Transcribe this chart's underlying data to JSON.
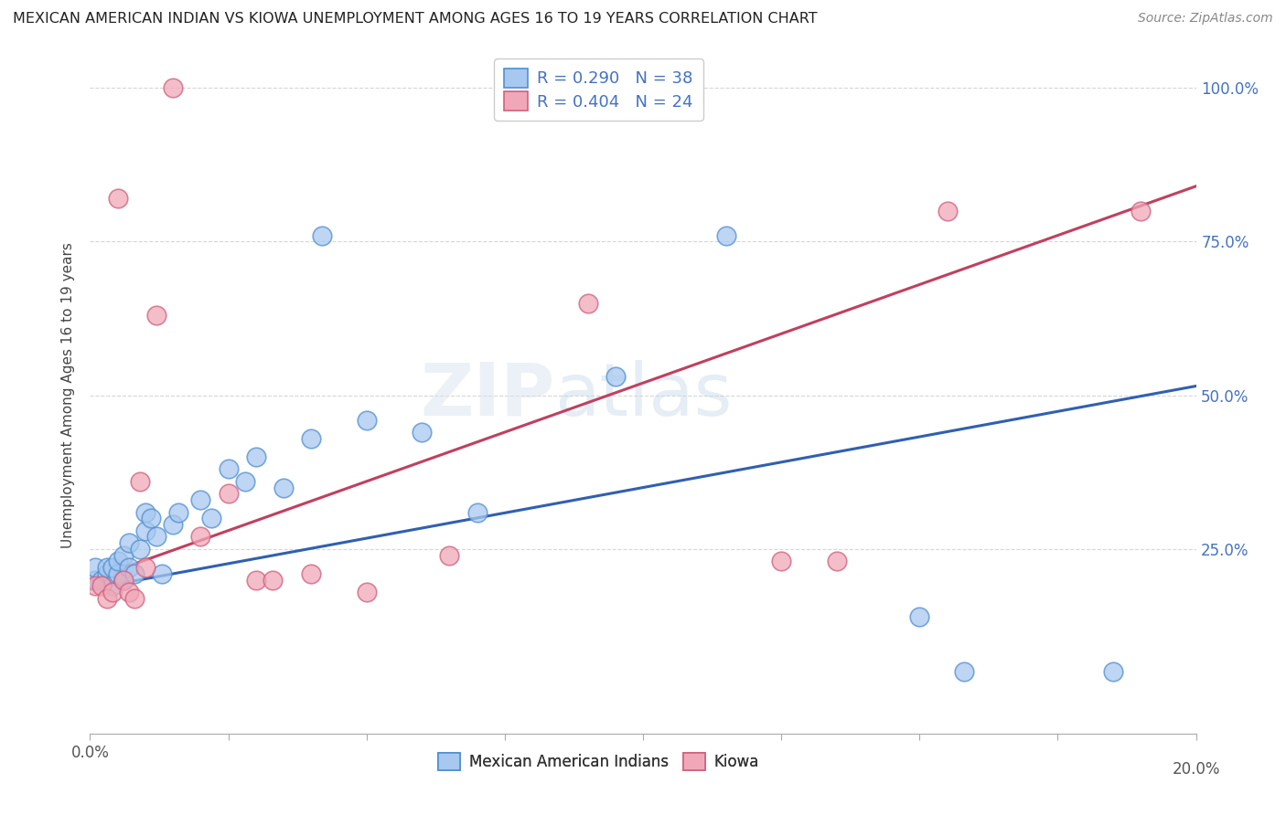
{
  "title": "MEXICAN AMERICAN INDIAN VS KIOWA UNEMPLOYMENT AMONG AGES 16 TO 19 YEARS CORRELATION CHART",
  "source": "Source: ZipAtlas.com",
  "ylabel": "Unemployment Among Ages 16 to 19 years",
  "ytick_labels": [
    "25.0%",
    "50.0%",
    "75.0%",
    "100.0%"
  ],
  "ytick_values": [
    0.25,
    0.5,
    0.75,
    1.0
  ],
  "xtick_values": [
    0,
    0.025,
    0.05,
    0.075,
    0.1,
    0.125,
    0.15,
    0.175,
    0.2
  ],
  "xlim": [
    0,
    0.2
  ],
  "ylim": [
    -0.05,
    1.05
  ],
  "blue_R": 0.29,
  "blue_N": 38,
  "pink_R": 0.404,
  "pink_N": 24,
  "blue_color": "#A8C8F0",
  "pink_color": "#F0A8B8",
  "blue_edge_color": "#5090D0",
  "pink_edge_color": "#D06080",
  "blue_line_color": "#3060B0",
  "pink_line_color": "#C04060",
  "legend_label_blue": "Mexican American Indians",
  "legend_label_pink": "Kiowa",
  "watermark_zip": "ZIP",
  "watermark_atlas": "atlas",
  "blue_scatter_x": [
    0.001,
    0.001,
    0.002,
    0.003,
    0.003,
    0.004,
    0.004,
    0.005,
    0.005,
    0.006,
    0.006,
    0.007,
    0.007,
    0.008,
    0.009,
    0.01,
    0.01,
    0.011,
    0.012,
    0.013,
    0.015,
    0.016,
    0.02,
    0.022,
    0.025,
    0.028,
    0.03,
    0.035,
    0.04,
    0.042,
    0.05,
    0.06,
    0.07,
    0.095,
    0.115,
    0.15,
    0.158,
    0.185
  ],
  "blue_scatter_y": [
    0.2,
    0.22,
    0.2,
    0.21,
    0.22,
    0.19,
    0.22,
    0.21,
    0.23,
    0.2,
    0.24,
    0.22,
    0.26,
    0.21,
    0.25,
    0.28,
    0.31,
    0.3,
    0.27,
    0.21,
    0.29,
    0.31,
    0.33,
    0.3,
    0.38,
    0.36,
    0.4,
    0.35,
    0.43,
    0.76,
    0.46,
    0.44,
    0.31,
    0.53,
    0.76,
    0.14,
    0.05,
    0.05
  ],
  "pink_scatter_x": [
    0.001,
    0.002,
    0.003,
    0.004,
    0.005,
    0.006,
    0.007,
    0.008,
    0.009,
    0.01,
    0.012,
    0.015,
    0.02,
    0.025,
    0.03,
    0.033,
    0.04,
    0.05,
    0.065,
    0.09,
    0.125,
    0.135,
    0.155,
    0.19
  ],
  "pink_scatter_y": [
    0.19,
    0.19,
    0.17,
    0.18,
    0.82,
    0.2,
    0.18,
    0.17,
    0.36,
    0.22,
    0.63,
    1.0,
    0.27,
    0.34,
    0.2,
    0.2,
    0.21,
    0.18,
    0.24,
    0.65,
    0.23,
    0.23,
    0.8,
    0.8
  ],
  "blue_line_intercept": 0.185,
  "blue_line_slope": 1.65,
  "pink_line_intercept": 0.2,
  "pink_line_slope": 3.2
}
